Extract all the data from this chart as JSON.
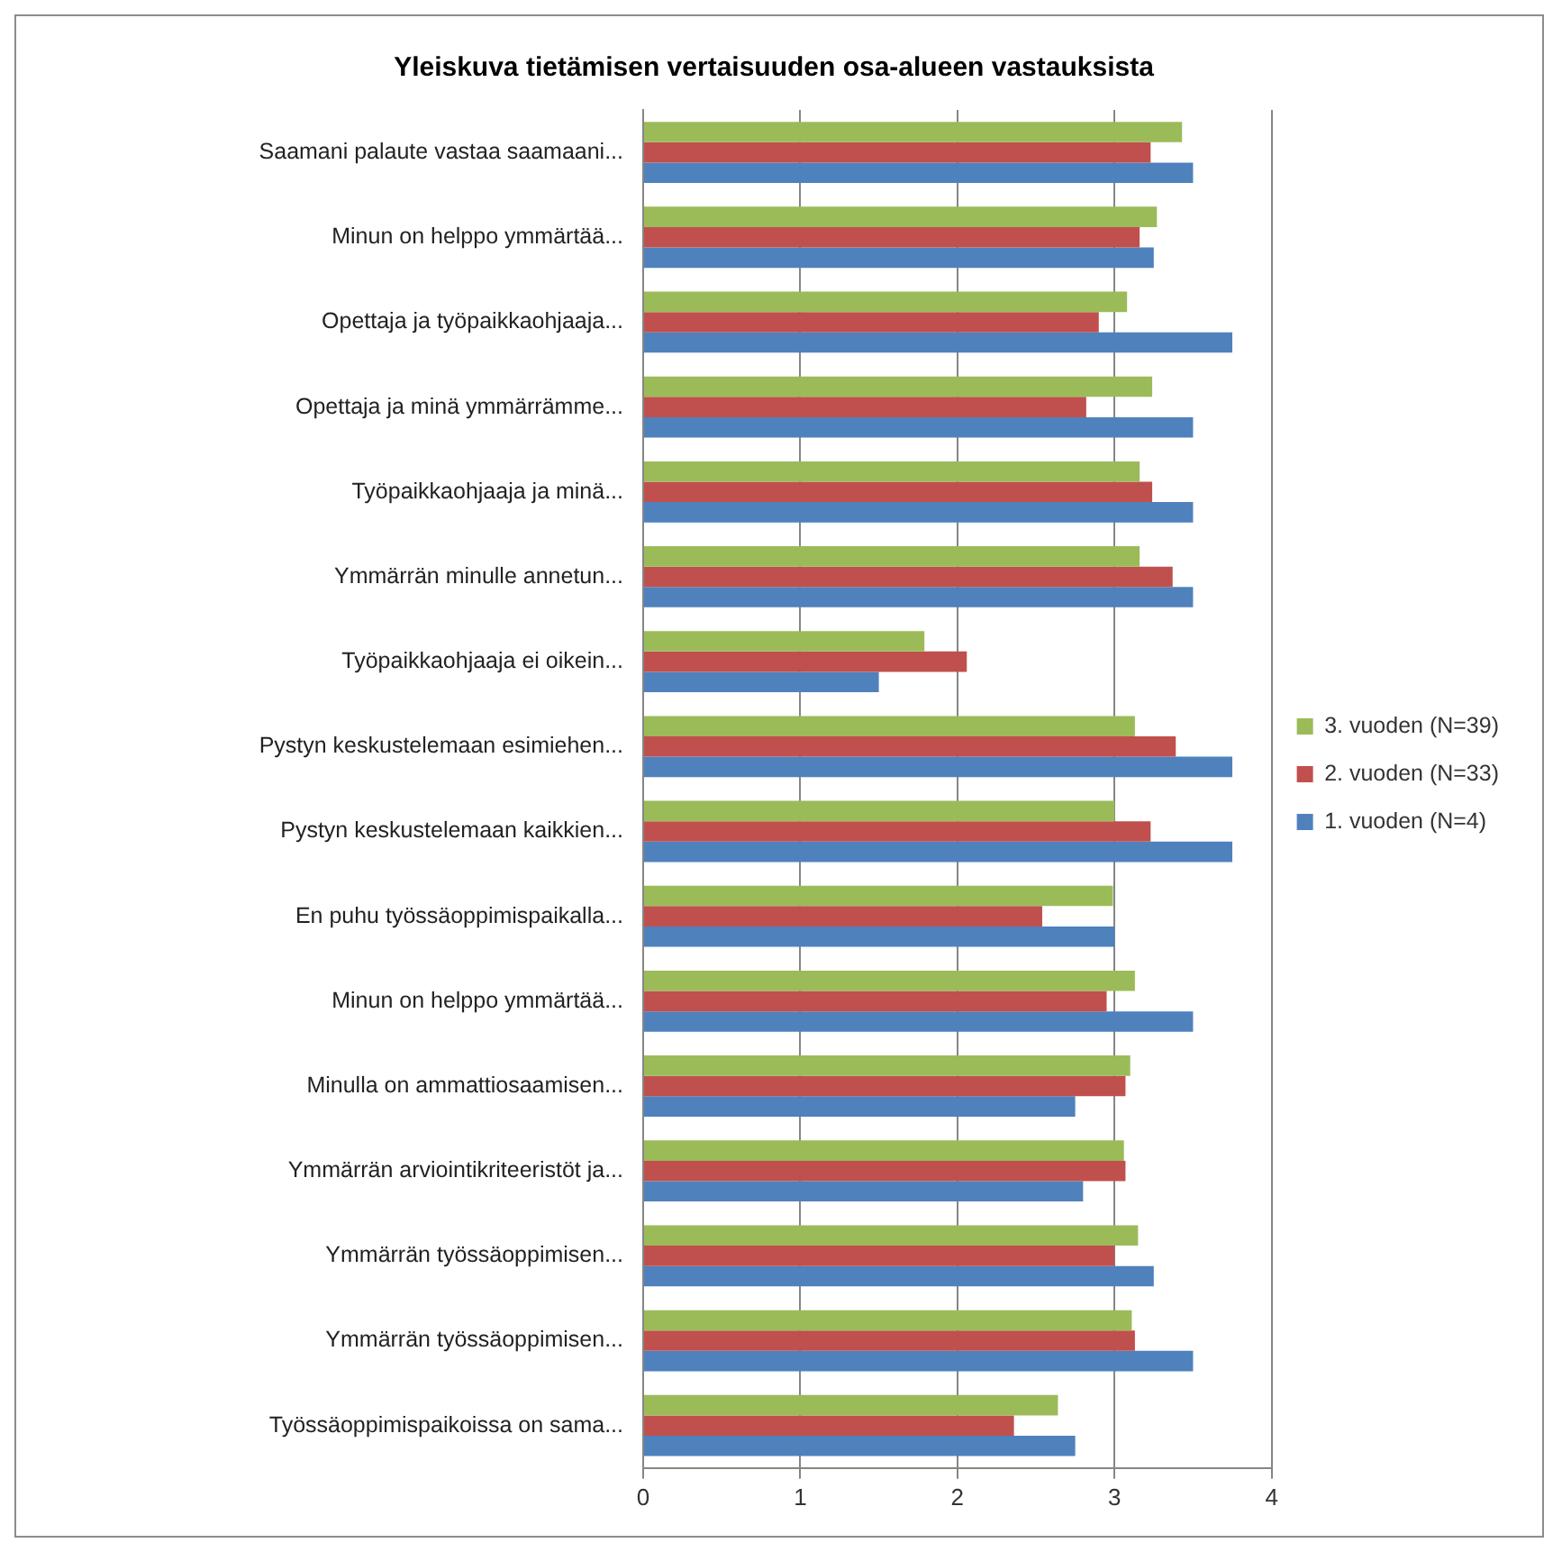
{
  "chart_data": {
    "type": "bar",
    "orientation": "horizontal",
    "title": "Yleiskuva tietämisen vertaisuuden osa-alueen vastauksista",
    "categories": [
      "Saamani palaute vastaa saamaani...",
      "Minun on helppo ymmärtää...",
      "Opettaja ja työpaikkaohjaaja...",
      "Opettaja ja minä ymmärrämme...",
      "Työpaikkaohjaaja ja minä...",
      "Ymmärrän minulle annetun...",
      "Työpaikkaohjaaja ei oikein...",
      "Pystyn keskustelemaan esimiehen...",
      "Pystyn keskustelemaan kaikkien...",
      "En puhu työssäoppimispaikalla...",
      "Minun on helppo ymmärtää...",
      "Minulla on ammattiosaamisen...",
      "Ymmärrän arviointikriteeristöt ja...",
      "Ymmärrän työssäoppimisen...",
      "Ymmärrän työssäoppimisen...",
      "Työssäoppimispaikoissa on sama..."
    ],
    "series": [
      {
        "name": "3. vuoden (N=39)",
        "color": "#9bbb59",
        "values": [
          3.43,
          3.27,
          3.08,
          3.24,
          3.16,
          3.16,
          1.79,
          3.13,
          3.0,
          2.99,
          3.13,
          3.1,
          3.06,
          3.15,
          3.11,
          2.64
        ]
      },
      {
        "name": "2. vuoden (N=33)",
        "color": "#c0504d",
        "values": [
          3.23,
          3.16,
          2.9,
          2.82,
          3.24,
          3.37,
          2.06,
          3.39,
          3.23,
          2.54,
          2.95,
          3.07,
          3.07,
          3.0,
          3.13,
          2.36
        ]
      },
      {
        "name": "1. vuoden (N=4)",
        "color": "#4f81bd",
        "values": [
          3.5,
          3.25,
          3.75,
          3.5,
          3.5,
          3.5,
          1.5,
          3.75,
          3.75,
          3.0,
          3.5,
          2.75,
          2.8,
          3.25,
          3.5,
          2.75
        ]
      }
    ],
    "xlim": [
      0,
      4
    ],
    "xticks": [
      0,
      1,
      2,
      3,
      4
    ],
    "grid": "x",
    "legend": "right"
  }
}
